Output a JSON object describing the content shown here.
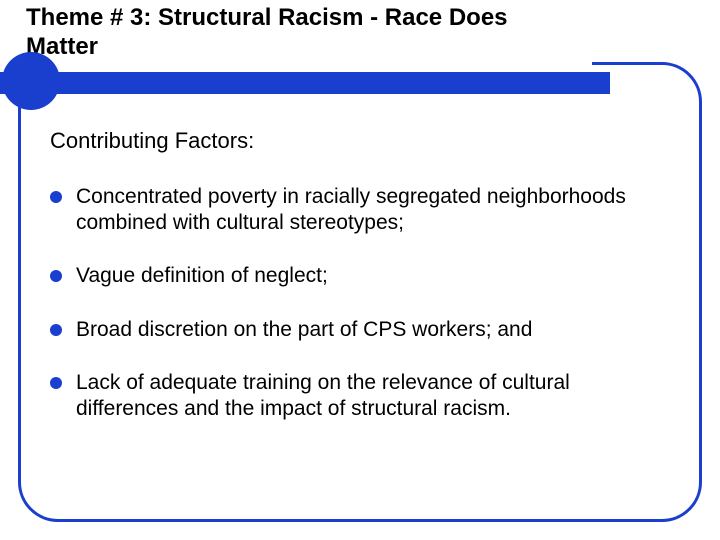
{
  "colors": {
    "accent": "#1a3fcf",
    "text": "#000000",
    "background": "#ffffff"
  },
  "typography": {
    "title_fontsize": 24,
    "intro_fontsize": 22,
    "bullet_fontsize": 21,
    "font_family": "Arial"
  },
  "layout": {
    "frame_border_width": 3,
    "frame_border_radius": 40,
    "bullet_dot_size": 12,
    "accent_circle_diameter": 58,
    "underline_height": 22
  },
  "title": "Theme # 3: Structural Racism - Race Does Matter",
  "intro": "Contributing Factors:",
  "bullets": [
    "Concentrated poverty in racially segregated neighborhoods combined with cultural stereotypes;",
    "Vague definition of neglect;",
    "Broad discretion on the part of CPS  workers; and",
    "Lack of adequate training on the relevance of cultural differences and the impact of structural racism."
  ]
}
